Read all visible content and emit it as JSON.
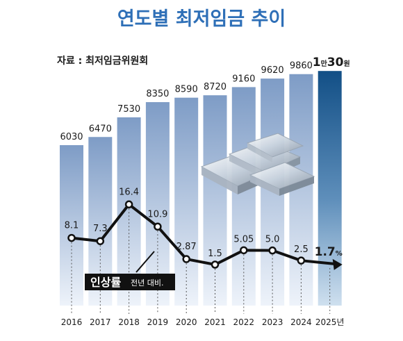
{
  "title": "연도별 최저임금 추이",
  "source": "자료 : 최저임금위원회",
  "chart_data": [
    {
      "type": "bar",
      "name": "최저임금",
      "categories": [
        "2016",
        "2017",
        "2018",
        "2019",
        "2020",
        "2021",
        "2022",
        "2023",
        "2024",
        "2025년"
      ],
      "values": [
        6030,
        6470,
        7530,
        8350,
        8590,
        8720,
        9160,
        9620,
        9860,
        10030
      ],
      "value_labels": [
        "6030",
        "6470",
        "7530",
        "8350",
        "8590",
        "8720",
        "9160",
        "9620",
        "9860",
        ""
      ],
      "last_label": {
        "big1": "1",
        "small": "만",
        "big2": "30",
        "unit": "원"
      }
    },
    {
      "type": "line",
      "name": "인상률",
      "categories": [
        "2016",
        "2017",
        "2018",
        "2019",
        "2020",
        "2021",
        "2022",
        "2023",
        "2024",
        "2025년"
      ],
      "values": [
        8.1,
        7.3,
        16.4,
        10.9,
        2.87,
        1.5,
        5.05,
        5.0,
        2.5,
        1.7
      ],
      "value_labels": [
        "8.1",
        "7.3",
        "16.4",
        "10.9",
        "2.87",
        "1.5",
        "5.05",
        "5.0",
        "2.5",
        "1.7"
      ],
      "last_unit": "%",
      "legend_main": "인상률",
      "legend_sub": "전년 대비."
    }
  ],
  "colors": {
    "title": "#2e6fb7",
    "bar_top": "#7e9cc6",
    "bar_bottom": "#eef3fa",
    "bar_last_top": "#124f86",
    "bar_last_bottom": "#cfe0ef",
    "line": "#111111",
    "text": "#1a1a1a"
  }
}
